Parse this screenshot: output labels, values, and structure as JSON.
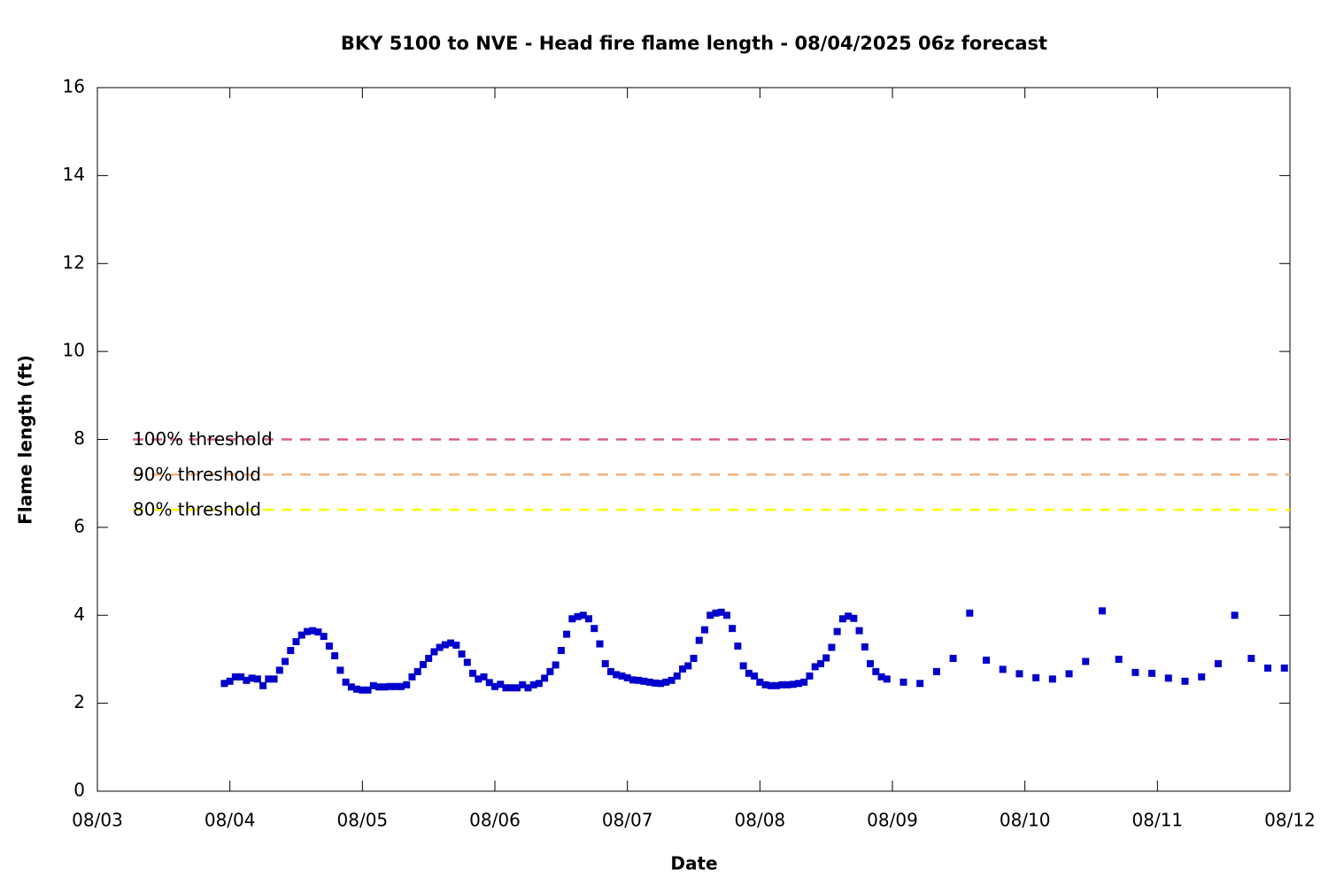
{
  "chart_data": {
    "type": "scatter",
    "title": "BKY 5100 to NVE - Head fire flame length - 08/04/2025 06z forecast",
    "xlabel": "Date",
    "ylabel": "Flame length (ft)",
    "color": "#0000cc",
    "xlim": [
      0,
      216
    ],
    "xticks": [
      {
        "value": 0,
        "label": "08/03"
      },
      {
        "value": 24,
        "label": "08/04"
      },
      {
        "value": 48,
        "label": "08/05"
      },
      {
        "value": 72,
        "label": "08/06"
      },
      {
        "value": 96,
        "label": "08/07"
      },
      {
        "value": 120,
        "label": "08/08"
      },
      {
        "value": 144,
        "label": "08/09"
      },
      {
        "value": 168,
        "label": "08/10"
      },
      {
        "value": 192,
        "label": "08/11"
      },
      {
        "value": 216,
        "label": "08/12"
      }
    ],
    "ylim": [
      0,
      16
    ],
    "yticks": [
      0,
      2,
      4,
      6,
      8,
      10,
      12,
      14,
      16
    ],
    "thresholds": [
      {
        "name": "100% threshold",
        "value": 8,
        "color": "#d9607f"
      },
      {
        "name": "90% threshold",
        "value": 7.2,
        "color": "#f2b27c"
      },
      {
        "name": "80% threshold",
        "value": 6.4,
        "color": "#ffff00"
      }
    ],
    "x": [
      23,
      24,
      25,
      26,
      27,
      28,
      29,
      30,
      31,
      32,
      33,
      34,
      35,
      36,
      37,
      38,
      39,
      40,
      41,
      42,
      43,
      44,
      45,
      46,
      47,
      48,
      49,
      50,
      51,
      52,
      53,
      54,
      55,
      56,
      57,
      58,
      59,
      60,
      61,
      62,
      63,
      64,
      65,
      66,
      67,
      68,
      69,
      70,
      71,
      72,
      73,
      74,
      75,
      76,
      77,
      78,
      79,
      80,
      81,
      82,
      83,
      84,
      85,
      86,
      87,
      88,
      89,
      90,
      91,
      92,
      93,
      94,
      95,
      96,
      97,
      98,
      99,
      100,
      101,
      102,
      103,
      104,
      105,
      106,
      107,
      108,
      109,
      110,
      111,
      112,
      113,
      114,
      115,
      116,
      117,
      118,
      119,
      120,
      121,
      122,
      123,
      124,
      125,
      126,
      127,
      128,
      129,
      130,
      131,
      132,
      133,
      134,
      135,
      136,
      137,
      138,
      139,
      140,
      141,
      142,
      143,
      146,
      149,
      152,
      155,
      158,
      161,
      164,
      167,
      170,
      173,
      176,
      179,
      182,
      185,
      188,
      191,
      194,
      197,
      200,
      203,
      206,
      209,
      212,
      215
    ],
    "values": [
      2.45,
      2.5,
      2.6,
      2.6,
      2.52,
      2.57,
      2.55,
      2.4,
      2.55,
      2.55,
      2.75,
      2.95,
      3.2,
      3.4,
      3.55,
      3.63,
      3.65,
      3.62,
      3.52,
      3.3,
      3.08,
      2.75,
      2.48,
      2.37,
      2.32,
      2.3,
      2.3,
      2.4,
      2.37,
      2.37,
      2.38,
      2.38,
      2.38,
      2.42,
      2.6,
      2.72,
      2.88,
      3.02,
      3.17,
      3.27,
      3.33,
      3.37,
      3.32,
      3.12,
      2.93,
      2.68,
      2.55,
      2.6,
      2.47,
      2.38,
      2.43,
      2.35,
      2.35,
      2.35,
      2.42,
      2.35,
      2.42,
      2.45,
      2.57,
      2.72,
      2.87,
      3.2,
      3.57,
      3.92,
      3.97,
      4.0,
      3.92,
      3.7,
      3.35,
      2.9,
      2.72,
      2.65,
      2.62,
      2.58,
      2.53,
      2.52,
      2.5,
      2.48,
      2.46,
      2.45,
      2.48,
      2.52,
      2.62,
      2.78,
      2.85,
      3.02,
      3.43,
      3.67,
      4.0,
      4.05,
      4.07,
      4.0,
      3.7,
      3.3,
      2.85,
      2.68,
      2.62,
      2.48,
      2.42,
      2.4,
      2.4,
      2.42,
      2.42,
      2.43,
      2.45,
      2.48,
      2.62,
      2.83,
      2.9,
      3.03,
      3.27,
      3.63,
      3.92,
      3.98,
      3.93,
      3.65,
      3.28,
      2.9,
      2.72,
      2.6,
      2.55,
      2.48,
      2.45,
      2.72,
      3.02,
      4.05,
      2.98,
      2.77,
      2.67,
      2.58,
      2.55,
      2.67,
      2.95,
      4.1,
      3.0,
      2.7,
      2.68,
      2.57,
      2.5,
      2.6,
      2.9,
      4.0,
      3.02,
      2.8,
      2.8
    ]
  }
}
